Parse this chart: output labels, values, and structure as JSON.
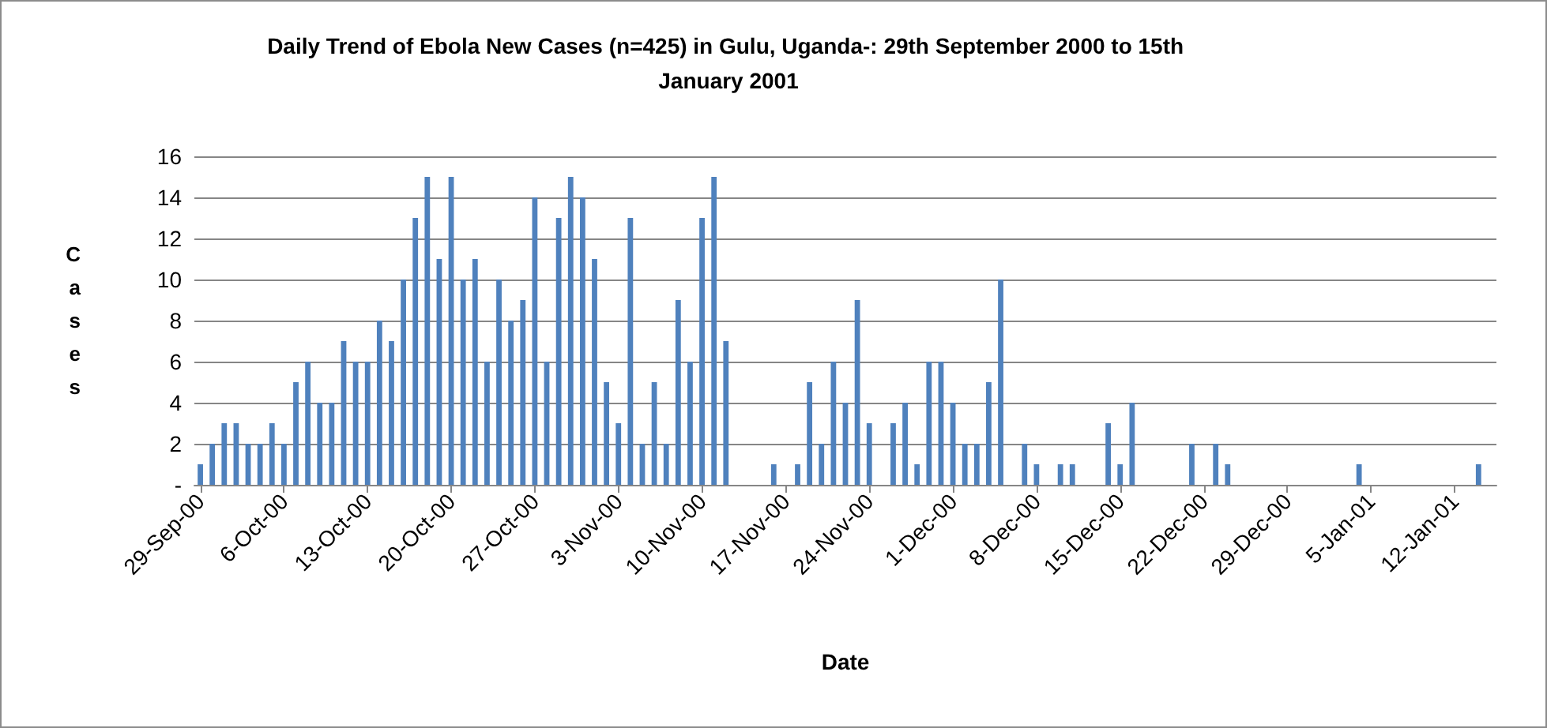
{
  "chart_data": {
    "type": "bar",
    "title": "Daily Trend of Ebola New Cases (n=425) in Gulu, Uganda-: 29th September 2000 to 15th January 2001",
    "xlabel": "Date",
    "ylabel": "Cases",
    "categories": [
      "29-Sep-00",
      null,
      null,
      null,
      null,
      null,
      null,
      "6-Oct-00",
      null,
      null,
      null,
      null,
      null,
      null,
      "13-Oct-00",
      null,
      null,
      null,
      null,
      null,
      null,
      "20-Oct-00",
      null,
      null,
      null,
      null,
      null,
      null,
      "27-Oct-00",
      null,
      null,
      null,
      null,
      null,
      null,
      "3-Nov-00",
      null,
      null,
      null,
      null,
      null,
      null,
      "10-Nov-00",
      null,
      null,
      null,
      null,
      null,
      null,
      "17-Nov-00",
      null,
      null,
      null,
      null,
      null,
      null,
      "24-Nov-00",
      null,
      null,
      null,
      null,
      null,
      null,
      "1-Dec-00",
      null,
      null,
      null,
      null,
      null,
      null,
      "8-Dec-00",
      null,
      null,
      null,
      null,
      null,
      null,
      "15-Dec-00",
      null,
      null,
      null,
      null,
      null,
      null,
      "22-Dec-00",
      null,
      null,
      null,
      null,
      null,
      null,
      "29-Dec-00",
      null,
      null,
      null,
      null,
      null,
      null,
      "5-Jan-01",
      null,
      null,
      null,
      null,
      null,
      null,
      "12-Jan-01",
      null,
      null,
      null
    ],
    "values": [
      1,
      2,
      3,
      3,
      2,
      2,
      3,
      2,
      5,
      6,
      4,
      4,
      7,
      6,
      6,
      8,
      7,
      10,
      13,
      15,
      11,
      15,
      10,
      11,
      6,
      10,
      8,
      9,
      14,
      6,
      13,
      15,
      14,
      11,
      5,
      3,
      13,
      2,
      5,
      2,
      9,
      6,
      13,
      15,
      7,
      0,
      0,
      0,
      1,
      0,
      1,
      5,
      2,
      6,
      4,
      9,
      3,
      0,
      3,
      4,
      1,
      6,
      6,
      4,
      2,
      2,
      5,
      10,
      0,
      2,
      1,
      0,
      1,
      1,
      0,
      0,
      3,
      1,
      4,
      0,
      0,
      0,
      0,
      2,
      0,
      2,
      1,
      0,
      0,
      0,
      0,
      0,
      0,
      0,
      0,
      0,
      0,
      1,
      0,
      0,
      0,
      0,
      0,
      0,
      0,
      0,
      0,
      1,
      0
    ],
    "color": "#4f81bd",
    "ylim": [
      0,
      16
    ],
    "yticks": [
      {
        "value": 0,
        "label": "-"
      },
      2,
      4,
      6,
      8,
      10,
      12,
      14,
      16
    ],
    "grid": "y"
  }
}
